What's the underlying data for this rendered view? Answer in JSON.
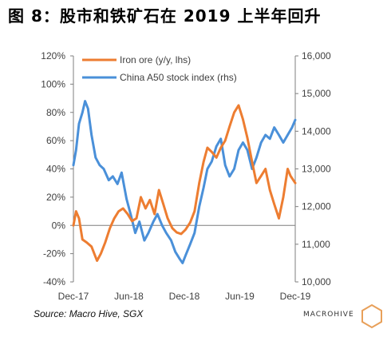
{
  "figure_title": "图 8：股市和铁矿石在 2019 上半年回升",
  "source_note": "Source: Macro Hive, SGX",
  "logo_text": "MACROHIVE",
  "colors": {
    "iron_ore": "#ED7D31",
    "a50": "#4A90D9",
    "axis": "#7F7F7F",
    "text": "#404040",
    "logo": "#E8A05A"
  },
  "chart_data": {
    "type": "line",
    "title": "",
    "xlabel": "",
    "ylabel_left": "",
    "ylabel_right": "",
    "x_ticks": [
      "Dec-17",
      "Jun-18",
      "Dec-18",
      "Jun-19",
      "Dec-19"
    ],
    "y_left": {
      "ticks": [
        "-40%",
        "-20%",
        "0%",
        "20%",
        "40%",
        "60%",
        "80%",
        "100%",
        "120%"
      ],
      "min": -40,
      "max": 120
    },
    "y_right": {
      "ticks": [
        "10,000",
        "11,000",
        "12,000",
        "13,000",
        "14,000",
        "15,000",
        "16,000"
      ],
      "min": 10000,
      "max": 16000
    },
    "legend_position": "top-left",
    "x_range": [
      "2017-12-01",
      "2019-12-31"
    ],
    "series": [
      {
        "name": "Iron ore (y/y, lhs)",
        "axis": "left",
        "points": [
          [
            "2017-12-01",
            0
          ],
          [
            "2017-12-10",
            10
          ],
          [
            "2017-12-20",
            5
          ],
          [
            "2018-01-01",
            -10
          ],
          [
            "2018-01-15",
            -12
          ],
          [
            "2018-02-01",
            -15
          ],
          [
            "2018-02-20",
            -25
          ],
          [
            "2018-03-05",
            -20
          ],
          [
            "2018-03-20",
            -12
          ],
          [
            "2018-04-05",
            -2
          ],
          [
            "2018-04-20",
            5
          ],
          [
            "2018-05-05",
            10
          ],
          [
            "2018-05-20",
            12
          ],
          [
            "2018-06-05",
            8
          ],
          [
            "2018-06-20",
            3
          ],
          [
            "2018-07-05",
            5
          ],
          [
            "2018-07-20",
            20
          ],
          [
            "2018-08-05",
            12
          ],
          [
            "2018-08-20",
            18
          ],
          [
            "2018-09-05",
            8
          ],
          [
            "2018-09-20",
            25
          ],
          [
            "2018-10-05",
            15
          ],
          [
            "2018-10-20",
            5
          ],
          [
            "2018-11-05",
            -2
          ],
          [
            "2018-11-20",
            -5
          ],
          [
            "2018-12-05",
            -6
          ],
          [
            "2018-12-20",
            -3
          ],
          [
            "2019-01-05",
            2
          ],
          [
            "2019-01-20",
            10
          ],
          [
            "2019-02-05",
            30
          ],
          [
            "2019-02-20",
            45
          ],
          [
            "2019-03-05",
            55
          ],
          [
            "2019-03-20",
            52
          ],
          [
            "2019-04-05",
            48
          ],
          [
            "2019-04-20",
            55
          ],
          [
            "2019-05-05",
            60
          ],
          [
            "2019-05-20",
            70
          ],
          [
            "2019-06-05",
            80
          ],
          [
            "2019-06-20",
            85
          ],
          [
            "2019-07-05",
            75
          ],
          [
            "2019-07-20",
            62
          ],
          [
            "2019-08-05",
            45
          ],
          [
            "2019-08-20",
            30
          ],
          [
            "2019-09-05",
            35
          ],
          [
            "2019-09-20",
            40
          ],
          [
            "2019-10-05",
            25
          ],
          [
            "2019-10-20",
            15
          ],
          [
            "2019-11-05",
            5
          ],
          [
            "2019-11-20",
            20
          ],
          [
            "2019-12-05",
            40
          ],
          [
            "2019-12-15",
            35
          ],
          [
            "2019-12-31",
            30
          ]
        ]
      },
      {
        "name": "China A50 stock index (rhs)",
        "axis": "right",
        "points": [
          [
            "2017-12-01",
            13100
          ],
          [
            "2017-12-10",
            13500
          ],
          [
            "2017-12-20",
            14200
          ],
          [
            "2018-01-01",
            14500
          ],
          [
            "2018-01-10",
            14800
          ],
          [
            "2018-01-20",
            14600
          ],
          [
            "2018-02-01",
            13900
          ],
          [
            "2018-02-15",
            13300
          ],
          [
            "2018-03-01",
            13100
          ],
          [
            "2018-03-15",
            13000
          ],
          [
            "2018-04-01",
            12700
          ],
          [
            "2018-04-15",
            12800
          ],
          [
            "2018-05-01",
            12600
          ],
          [
            "2018-05-15",
            12900
          ],
          [
            "2018-06-01",
            12200
          ],
          [
            "2018-06-15",
            11800
          ],
          [
            "2018-07-01",
            11300
          ],
          [
            "2018-07-15",
            11600
          ],
          [
            "2018-08-01",
            11100
          ],
          [
            "2018-08-15",
            11300
          ],
          [
            "2018-09-01",
            11600
          ],
          [
            "2018-09-15",
            11800
          ],
          [
            "2018-10-01",
            11500
          ],
          [
            "2018-10-15",
            11300
          ],
          [
            "2018-11-01",
            11100
          ],
          [
            "2018-11-15",
            10800
          ],
          [
            "2018-12-01",
            10600
          ],
          [
            "2018-12-10",
            10500
          ],
          [
            "2018-12-20",
            10700
          ],
          [
            "2019-01-05",
            11000
          ],
          [
            "2019-01-20",
            11300
          ],
          [
            "2019-02-05",
            12000
          ],
          [
            "2019-02-20",
            12500
          ],
          [
            "2019-03-05",
            13000
          ],
          [
            "2019-03-20",
            13200
          ],
          [
            "2019-04-05",
            13600
          ],
          [
            "2019-04-20",
            13800
          ],
          [
            "2019-05-05",
            13100
          ],
          [
            "2019-05-20",
            12800
          ],
          [
            "2019-06-05",
            13000
          ],
          [
            "2019-06-20",
            13500
          ],
          [
            "2019-07-05",
            13700
          ],
          [
            "2019-07-20",
            13500
          ],
          [
            "2019-08-05",
            13000
          ],
          [
            "2019-08-20",
            13300
          ],
          [
            "2019-09-05",
            13700
          ],
          [
            "2019-09-20",
            13900
          ],
          [
            "2019-10-05",
            13800
          ],
          [
            "2019-10-20",
            14100
          ],
          [
            "2019-11-05",
            13900
          ],
          [
            "2019-11-20",
            13700
          ],
          [
            "2019-12-05",
            13900
          ],
          [
            "2019-12-20",
            14100
          ],
          [
            "2019-12-31",
            14300
          ]
        ]
      }
    ]
  }
}
